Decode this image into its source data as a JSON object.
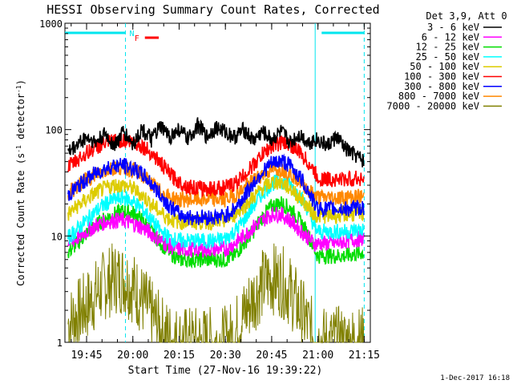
{
  "chart_data": {
    "type": "line",
    "title": "HESSI Observing Summary Count Rates, Corrected",
    "xlabel": "Start Time (27-Nov-16 19:39:22)",
    "ylabel_main": "Corrected Count Rate (s",
    "ylabel_sup1": "-1",
    "ylabel_mid": " detector",
    "ylabel_sup2": "-1",
    "ylabel_end": ")",
    "y_scale": "log",
    "ylim": [
      1,
      1000
    ],
    "xlim_minutes": [
      19.633,
      21.283
    ],
    "y_ticks": [
      {
        "value": 1,
        "label": "1"
      },
      {
        "value": 10,
        "label": "10"
      },
      {
        "value": 100,
        "label": "100"
      },
      {
        "value": 1000,
        "label": "1000"
      }
    ],
    "x_ticks": [
      {
        "value": 19.75,
        "label": "19:45"
      },
      {
        "value": 20.0,
        "label": "20:00"
      },
      {
        "value": 20.25,
        "label": "20:15"
      },
      {
        "value": 20.5,
        "label": "20:30"
      },
      {
        "value": 20.75,
        "label": "20:45"
      },
      {
        "value": 21.0,
        "label": "21:00"
      },
      {
        "value": 21.25,
        "label": "21:15"
      }
    ],
    "x_units": "hours (decimal, UT)",
    "legend_header": "Det 3,9, Att 0",
    "legend_placement": "right",
    "series": [
      {
        "name": "3 - 6 keV",
        "color": "#000000",
        "x": [
          19.65,
          19.7,
          19.75,
          19.8,
          19.85,
          19.9,
          19.95,
          20.0,
          20.05,
          20.1,
          20.15,
          20.2,
          20.25,
          20.3,
          20.35,
          20.4,
          20.45,
          20.5,
          20.55,
          20.6,
          20.65,
          20.7,
          20.75,
          20.8,
          20.85,
          20.9,
          20.95,
          20.98,
          21.0,
          21.05,
          21.1,
          21.15,
          21.25
        ],
        "values": [
          60,
          72,
          85,
          75,
          90,
          70,
          95,
          72,
          100,
          80,
          105,
          85,
          100,
          80,
          110,
          85,
          105,
          95,
          85,
          100,
          78,
          95,
          80,
          95,
          75,
          90,
          75,
          80,
          80,
          70,
          85,
          65,
          50
        ]
      },
      {
        "name": "6 - 12 keV",
        "color": "#ff00ff",
        "x": [
          19.65,
          19.7,
          19.75,
          19.8,
          19.85,
          19.9,
          19.95,
          20.0,
          20.05,
          20.1,
          20.15,
          20.2,
          20.25,
          20.3,
          20.35,
          20.4,
          20.45,
          20.5,
          20.55,
          20.6,
          20.65,
          20.7,
          20.75,
          20.8,
          20.85,
          20.9,
          20.95,
          20.98,
          21.0,
          21.05,
          21.1,
          21.15,
          21.25
        ],
        "values": [
          8.5,
          9.5,
          11,
          12.5,
          13.5,
          14,
          14,
          13,
          12,
          10.5,
          9,
          8,
          7.5,
          7.5,
          7.5,
          7.5,
          7.5,
          7.5,
          8.5,
          10,
          12,
          14,
          16,
          16,
          14,
          11.5,
          9.5,
          8.5,
          8.5,
          8.5,
          8.5,
          9,
          9.5
        ]
      },
      {
        "name": "12 - 25 keV",
        "color": "#00dd00",
        "x": [
          19.65,
          19.7,
          19.75,
          19.8,
          19.85,
          19.9,
          19.95,
          20.0,
          20.05,
          20.1,
          20.15,
          20.2,
          20.25,
          20.3,
          20.35,
          20.4,
          20.45,
          20.5,
          20.55,
          20.6,
          20.65,
          20.7,
          20.75,
          20.8,
          20.85,
          20.9,
          20.95,
          20.98,
          21.0,
          21.05,
          21.1,
          21.15,
          21.25
        ],
        "values": [
          7,
          8.5,
          10.5,
          12.5,
          14.5,
          16,
          17,
          16.5,
          14,
          11,
          8.5,
          7,
          6,
          6,
          6,
          6,
          6,
          6,
          6.5,
          8.5,
          11,
          15,
          19,
          20.5,
          18,
          14,
          10,
          7.5,
          6.5,
          6.5,
          6.5,
          6.5,
          7
        ]
      },
      {
        "name": "25 - 50 keV",
        "color": "#00ffff",
        "x": [
          19.65,
          19.7,
          19.75,
          19.8,
          19.85,
          19.9,
          19.95,
          20.0,
          20.05,
          20.1,
          20.15,
          20.2,
          20.25,
          20.3,
          20.35,
          20.4,
          20.45,
          20.5,
          20.55,
          20.6,
          20.65,
          20.7,
          20.75,
          20.8,
          20.85,
          20.9,
          20.95,
          20.98,
          21.0,
          21.05,
          21.1,
          21.15,
          21.25
        ],
        "values": [
          9.5,
          11.5,
          14,
          17,
          20,
          22,
          23,
          21,
          18,
          14,
          11,
          9.5,
          9,
          9,
          9,
          9,
          9,
          9.5,
          11,
          14,
          19,
          25,
          31,
          33,
          30,
          24,
          17,
          12,
          11,
          11,
          11,
          11,
          11.5
        ]
      },
      {
        "name": "50 - 100 keV",
        "color": "#ddcc00",
        "x": [
          19.65,
          19.7,
          19.75,
          19.8,
          19.85,
          19.9,
          19.95,
          20.0,
          20.05,
          20.1,
          20.15,
          20.2,
          20.25,
          20.3,
          20.35,
          20.4,
          20.45,
          20.5,
          20.55,
          20.6,
          20.65,
          20.7,
          20.75,
          20.8,
          20.85,
          20.9,
          20.95,
          20.98,
          21.0,
          21.05,
          21.1,
          21.15,
          21.25
        ],
        "values": [
          16,
          19,
          22,
          25.5,
          28,
          30,
          30,
          28,
          24,
          20,
          16.5,
          14.5,
          13.5,
          13.5,
          13.5,
          13.5,
          13.5,
          14,
          16,
          19,
          23,
          28,
          32,
          32,
          28,
          23,
          18.5,
          16,
          15.5,
          15.5,
          15.5,
          16,
          16
        ]
      },
      {
        "name": "100 - 300 keV",
        "color": "#ff0000",
        "x": [
          19.65,
          19.7,
          19.75,
          19.8,
          19.85,
          19.9,
          19.95,
          20.0,
          20.05,
          20.1,
          20.15,
          20.2,
          20.25,
          20.3,
          20.35,
          20.4,
          20.45,
          20.5,
          20.55,
          20.6,
          20.65,
          20.7,
          20.75,
          20.8,
          20.85,
          20.9,
          20.95,
          20.98,
          21.0,
          21.05,
          21.1,
          21.15,
          21.25
        ],
        "values": [
          44,
          52,
          60,
          68,
          74,
          78,
          79,
          76,
          70,
          60,
          48,
          38,
          32,
          29,
          28,
          28,
          28,
          28.5,
          31,
          37,
          46,
          58,
          70,
          76,
          72,
          61,
          48,
          40,
          35,
          34,
          34,
          34,
          35
        ]
      },
      {
        "name": "300 - 800 keV",
        "color": "#0000ff",
        "x": [
          19.65,
          19.7,
          19.75,
          19.8,
          19.85,
          19.9,
          19.95,
          20.0,
          20.05,
          20.1,
          20.15,
          20.2,
          20.25,
          20.3,
          20.35,
          20.4,
          20.45,
          20.5,
          20.55,
          20.6,
          20.65,
          20.7,
          20.75,
          20.8,
          20.85,
          20.9,
          20.95,
          20.98,
          21.0,
          21.05,
          21.1,
          21.15,
          21.25
        ],
        "values": [
          24,
          29,
          34,
          39,
          43,
          46,
          46,
          43,
          38,
          31,
          24,
          19,
          16,
          15,
          15,
          15,
          15,
          15.5,
          18,
          23,
          31,
          40,
          48,
          51,
          46,
          36,
          26,
          20,
          18,
          18,
          18,
          18,
          18.5
        ]
      },
      {
        "name": "800 - 7000 keV",
        "color": "#ff8800",
        "x": [
          19.65,
          19.7,
          19.75,
          19.8,
          19.85,
          19.9,
          19.95,
          20.0,
          20.05,
          20.1,
          20.15,
          20.2,
          20.25,
          20.3,
          20.35,
          20.4,
          20.45,
          20.5,
          20.55,
          20.6,
          20.65,
          20.7,
          20.75,
          20.8,
          20.85,
          20.9,
          20.95,
          20.98,
          21.0,
          21.05,
          21.1,
          21.15,
          21.25
        ],
        "values": [
          25,
          29,
          34,
          38,
          41,
          44,
          44,
          42,
          37,
          31,
          26,
          23,
          22,
          22,
          22,
          22,
          22,
          22,
          24,
          28,
          33,
          38,
          42,
          43,
          39,
          33,
          27,
          24,
          23,
          23,
          23,
          23,
          23.5
        ]
      },
      {
        "name": "7000 - 20000 keV",
        "color": "#808000",
        "x": [
          19.65,
          19.7,
          19.75,
          19.8,
          19.85,
          19.9,
          19.95,
          20.0,
          20.05,
          20.1,
          20.15,
          20.2,
          20.25,
          20.3,
          20.35,
          20.4,
          20.45,
          20.5,
          20.55,
          20.6,
          20.65,
          20.7,
          20.75,
          20.8,
          20.85,
          20.9,
          20.95,
          20.98,
          21.0,
          21.05,
          21.1,
          21.15,
          21.25
        ],
        "values": [
          1.5,
          1.8,
          2.2,
          2.8,
          3.5,
          4,
          4,
          3.3,
          2.5,
          1.8,
          1.3,
          1.1,
          1,
          1,
          1,
          1,
          1,
          1,
          1.2,
          1.8,
          2.6,
          3.5,
          4,
          3.8,
          3,
          2,
          1.4,
          1.1,
          1,
          1,
          1,
          1,
          1
        ]
      }
    ],
    "annotations": [
      {
        "type": "bar",
        "label": "N",
        "color": "#00e5ee",
        "segments": [
          [
            19.633,
            19.96
          ],
          [
            21.02,
            21.25
          ]
        ]
      },
      {
        "type": "bar",
        "label": "F",
        "color": "#ff0000",
        "segments": [
          [
            20.065,
            20.14
          ]
        ]
      }
    ],
    "vertical_lines": [
      {
        "x": 19.96,
        "style": "dashed",
        "color": "#00e5ee"
      },
      {
        "x": 20.985,
        "style": "solid",
        "color": "#00e5ee"
      },
      {
        "x": 21.25,
        "style": "dashed",
        "color": "#00e5ee"
      }
    ],
    "grid": false
  },
  "footer": {
    "date_stamp": "1-Dec-2017 16:18"
  }
}
